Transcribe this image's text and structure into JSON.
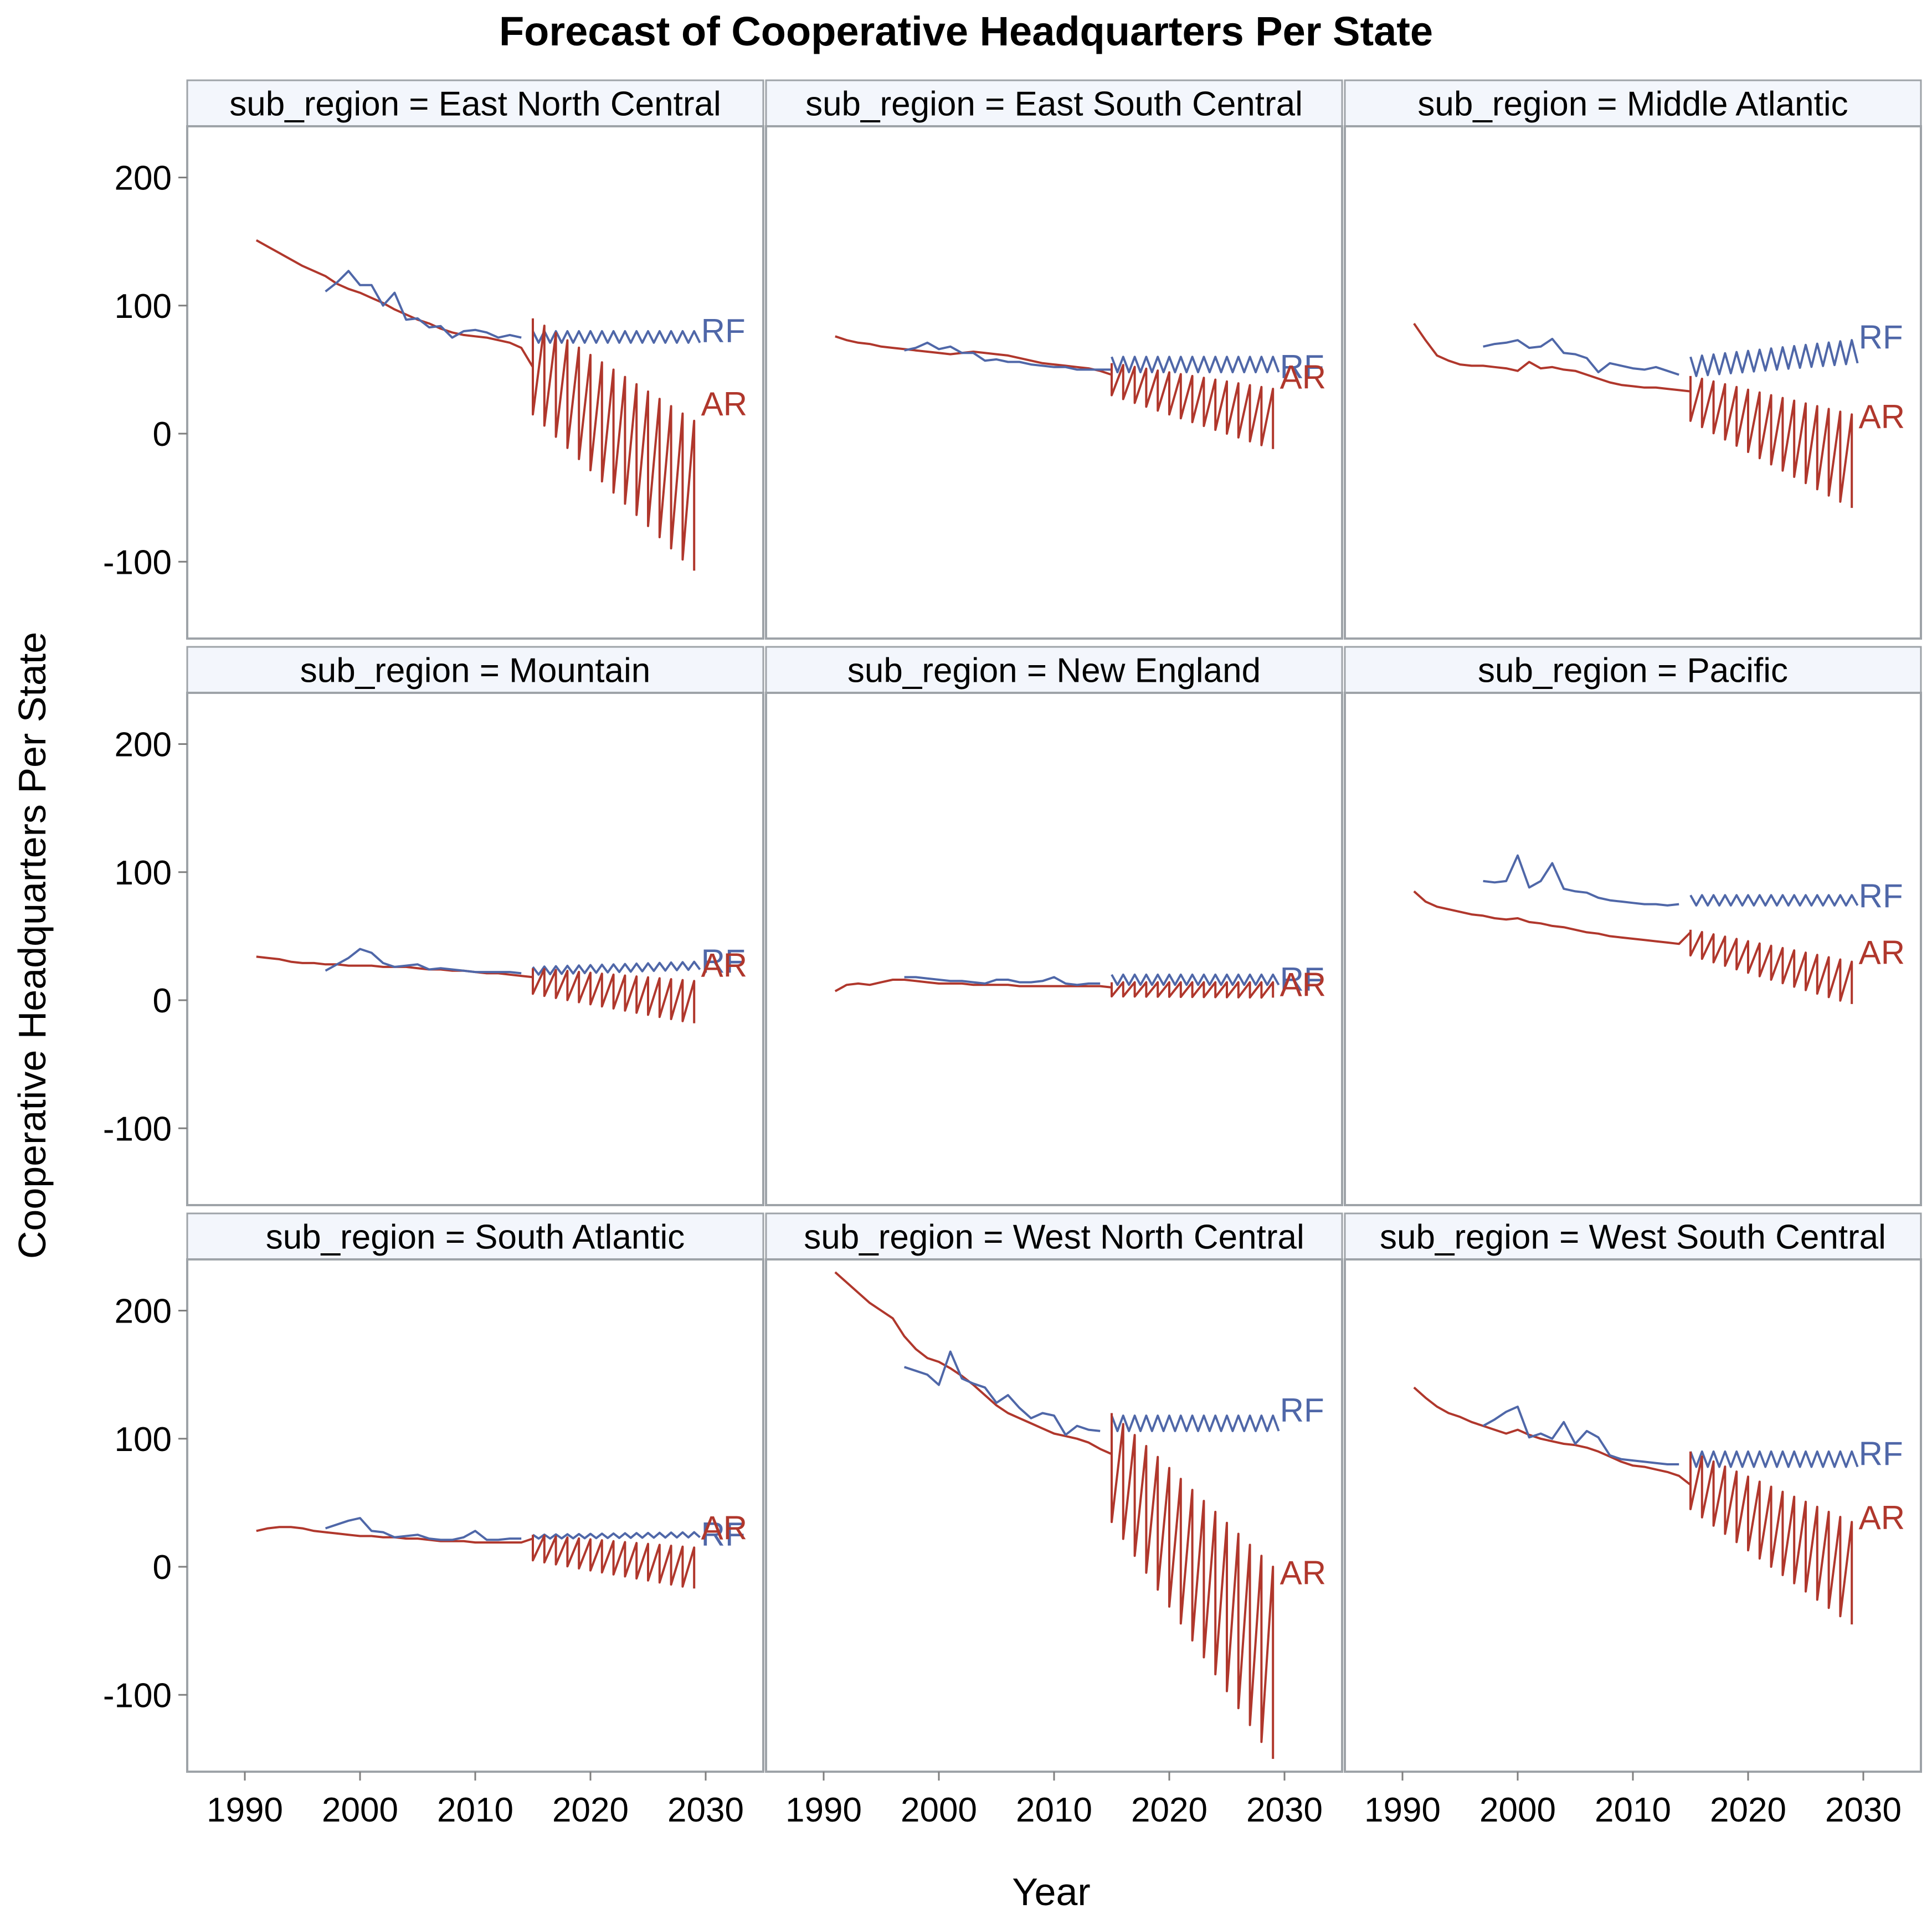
{
  "colors": {
    "rf": "#4F67A8",
    "ar": "#B0372C",
    "strip_bg": "#F3F6FC",
    "frame": "#9EA3A8",
    "axis": "#7F7F7F"
  },
  "chart_data": {
    "type": "line",
    "title": "Forecast of Cooperative Headquarters Per State",
    "xlabel": "Year",
    "ylabel": "Cooperative Headquarters Per State",
    "xlim": [
      1985,
      2035
    ],
    "ylim": [
      -160,
      240
    ],
    "xticks": [
      1990,
      2000,
      2010,
      2020,
      2030
    ],
    "xtick_labels": [
      "1990",
      "2000",
      "2010",
      "2020",
      "2030"
    ],
    "yticks": [
      200,
      100,
      0,
      -100
    ],
    "ytick_labels": [
      "200",
      "100",
      "0",
      "-100"
    ],
    "facet_variable": "sub_region",
    "panels": [
      {
        "label": "sub_region = East North Central",
        "rf": {
          "name": "RF",
          "start": 1997,
          "values": [
            111,
            118,
            127,
            116,
            116,
            100,
            110,
            89,
            90,
            83,
            84,
            75,
            80,
            81,
            79,
            75,
            77,
            75
          ],
          "forecast": {
            "start": 2015,
            "end": 2029,
            "high": 80,
            "low": 71
          }
        },
        "ar": {
          "name": "AR",
          "start": 1991,
          "values": [
            151,
            146,
            141,
            136,
            131,
            127,
            123,
            117,
            113,
            110,
            106,
            102,
            97,
            93,
            89,
            86,
            82,
            79,
            77,
            76,
            75,
            73,
            71,
            67,
            52
          ],
          "forecast": {
            "start": 2015,
            "end": 2029,
            "high_start": 90,
            "high_end": 10,
            "low_start": 15,
            "low_end": -107
          }
        }
      },
      {
        "label": "sub_region = East South Central",
        "rf": {
          "name": "RF",
          "start": 1997,
          "values": [
            65,
            67,
            71,
            66,
            68,
            63,
            63,
            57,
            58,
            56,
            56,
            54,
            53,
            52,
            52,
            50,
            50,
            50,
            50
          ],
          "forecast": {
            "start": 2015,
            "end": 2029,
            "high": 60,
            "low": 48
          }
        },
        "ar": {
          "name": "AR",
          "start": 1991,
          "values": [
            76,
            73,
            71,
            70,
            68,
            67,
            66,
            65,
            64,
            63,
            62,
            63,
            64,
            63,
            62,
            61,
            59,
            57,
            55,
            54,
            53,
            52,
            51,
            49,
            46
          ],
          "forecast": {
            "start": 2015,
            "end": 2029,
            "high_start": 55,
            "high_end": 35,
            "low_start": 30,
            "low_end": -12
          }
        }
      },
      {
        "label": "sub_region = Middle Atlantic",
        "rf": {
          "name": "RF",
          "start": 1997,
          "values": [
            68,
            70,
            71,
            73,
            67,
            68,
            74,
            63,
            62,
            59,
            48,
            55,
            53,
            51,
            50,
            52,
            49,
            46
          ],
          "forecast": {
            "start": 2015,
            "end": 2029,
            "high_start": 60,
            "high_end": 73,
            "low_start": 45,
            "low_end": 55
          }
        },
        "ar": {
          "name": "AR",
          "start": 1991,
          "values": [
            86,
            73,
            61,
            57,
            54,
            53,
            53,
            52,
            51,
            49,
            56,
            51,
            52,
            50,
            49,
            46,
            43,
            40,
            38,
            37,
            36,
            36,
            35,
            34,
            33
          ],
          "forecast": {
            "start": 2015,
            "end": 2029,
            "high_start": 45,
            "high_end": 15,
            "low_start": 10,
            "low_end": -58
          }
        }
      },
      {
        "label": "sub_region = Mountain",
        "rf": {
          "name": "RF",
          "start": 1997,
          "values": [
            23,
            28,
            33,
            40,
            37,
            29,
            26,
            27,
            28,
            24,
            25,
            24,
            23,
            22,
            22,
            22,
            22,
            21
          ],
          "forecast": {
            "start": 2015,
            "end": 2029,
            "high_start": 26,
            "high_end": 30,
            "low_start": 20,
            "low_end": 24
          }
        },
        "ar": {
          "name": "AR",
          "start": 1991,
          "values": [
            34,
            33,
            32,
            30,
            29,
            29,
            28,
            28,
            27,
            27,
            27,
            26,
            26,
            26,
            25,
            24,
            24,
            23,
            23,
            22,
            21,
            21,
            20,
            19,
            18
          ],
          "forecast": {
            "start": 2015,
            "end": 2029,
            "high_start": 25,
            "high_end": 15,
            "low_start": 5,
            "low_end": -18
          }
        }
      },
      {
        "label": "sub_region = New England",
        "rf": {
          "name": "RF",
          "start": 1997,
          "values": [
            18,
            18,
            17,
            16,
            15,
            15,
            14,
            13,
            16,
            16,
            14,
            14,
            15,
            18,
            13,
            12,
            13,
            13
          ],
          "forecast": {
            "start": 2015,
            "end": 2029,
            "high": 20,
            "low": 12
          }
        },
        "ar": {
          "name": "AR",
          "start": 1991,
          "values": [
            7,
            12,
            13,
            12,
            14,
            16,
            16,
            15,
            14,
            13,
            13,
            13,
            12,
            12,
            12,
            12,
            11,
            11,
            11,
            11,
            11,
            11,
            11,
            11,
            10
          ],
          "forecast": {
            "start": 2015,
            "end": 2029,
            "high_start": 14,
            "high_end": 14,
            "low_start": 3,
            "low_end": 2
          }
        }
      },
      {
        "label": "sub_region = Pacific",
        "rf": {
          "name": "RF",
          "start": 1997,
          "values": [
            93,
            92,
            93,
            113,
            88,
            93,
            107,
            87,
            85,
            84,
            80,
            78,
            77,
            76,
            75,
            75,
            74,
            75
          ],
          "forecast": {
            "start": 2015,
            "end": 2029,
            "high": 82,
            "low": 74
          }
        },
        "ar": {
          "name": "AR",
          "start": 1991,
          "values": [
            85,
            77,
            73,
            71,
            69,
            67,
            66,
            64,
            63,
            64,
            61,
            60,
            58,
            57,
            55,
            53,
            52,
            50,
            49,
            48,
            47,
            46,
            45,
            44,
            53
          ],
          "forecast": {
            "start": 2015,
            "end": 2029,
            "high_start": 55,
            "high_end": 30,
            "low_start": 35,
            "low_end": -3
          }
        }
      },
      {
        "label": "sub_region = South Atlantic",
        "rf": {
          "name": "RF",
          "start": 1997,
          "values": [
            30,
            33,
            36,
            38,
            28,
            27,
            23,
            24,
            25,
            22,
            21,
            21,
            23,
            28,
            21,
            21,
            22,
            22
          ],
          "forecast": {
            "start": 2015,
            "end": 2029,
            "high_start": 25,
            "high_end": 27,
            "low_start": 22,
            "low_end": 23
          }
        },
        "ar": {
          "name": "AR",
          "start": 1991,
          "values": [
            28,
            30,
            31,
            31,
            30,
            28,
            27,
            26,
            25,
            24,
            24,
            23,
            23,
            22,
            22,
            21,
            20,
            20,
            20,
            19,
            19,
            19,
            19,
            19,
            22
          ],
          "forecast": {
            "start": 2015,
            "end": 2029,
            "high_start": 25,
            "high_end": 15,
            "low_start": 5,
            "low_end": -17
          }
        }
      },
      {
        "label": "sub_region = West North Central",
        "rf": {
          "name": "RF",
          "start": 1997,
          "values": [
            156,
            153,
            150,
            142,
            168,
            147,
            143,
            140,
            128,
            134,
            124,
            116,
            120,
            118,
            103,
            110,
            107,
            106
          ],
          "forecast": {
            "start": 2015,
            "end": 2029,
            "high": 118,
            "low": 106
          }
        },
        "ar": {
          "name": "AR",
          "start": 1991,
          "values": [
            230,
            222,
            214,
            206,
            200,
            194,
            180,
            170,
            163,
            160,
            155,
            149,
            142,
            134,
            126,
            120,
            116,
            112,
            108,
            104,
            102,
            100,
            97,
            92,
            88
          ],
          "forecast": {
            "start": 2015,
            "end": 2029,
            "high_start": 120,
            "high_end": 0,
            "low_start": 35,
            "low_end": -150
          }
        }
      },
      {
        "label": "sub_region = West South Central",
        "rf": {
          "name": "RF",
          "start": 1997,
          "values": [
            110,
            115,
            121,
            125,
            101,
            104,
            100,
            113,
            96,
            106,
            101,
            87,
            84,
            83,
            82,
            81,
            80,
            80
          ],
          "forecast": {
            "start": 2015,
            "end": 2029,
            "high": 90,
            "low": 78
          }
        },
        "ar": {
          "name": "AR",
          "start": 1991,
          "values": [
            140,
            132,
            125,
            120,
            117,
            113,
            110,
            107,
            104,
            107,
            103,
            100,
            98,
            96,
            95,
            93,
            90,
            86,
            82,
            79,
            78,
            76,
            74,
            71,
            64
          ],
          "forecast": {
            "start": 2015,
            "end": 2029,
            "high_start": 90,
            "high_end": 35,
            "low_start": 45,
            "low_end": -45
          }
        }
      }
    ],
    "end_labels": [
      {
        "text": "RF",
        "series": "rf",
        "panel": 0,
        "value": 80
      },
      {
        "text": "AR",
        "series": "ar",
        "panel": 0,
        "value": 23
      },
      {
        "text": "RF",
        "series": "rf",
        "panel": 1,
        "value": 52
      },
      {
        "text": "AR",
        "series": "ar",
        "panel": 1,
        "value": 44
      },
      {
        "text": "RF",
        "series": "rf",
        "panel": 2,
        "value": 75
      },
      {
        "text": "AR",
        "series": "ar",
        "panel": 2,
        "value": 13
      },
      {
        "text": "RF",
        "series": "rf",
        "panel": 3,
        "value": 30
      },
      {
        "text": "AR",
        "series": "ar",
        "panel": 3,
        "value": 27
      },
      {
        "text": "RF",
        "series": "rf",
        "panel": 4,
        "value": 16
      },
      {
        "text": "AR",
        "series": "ar",
        "panel": 4,
        "value": 12
      },
      {
        "text": "RF",
        "series": "rf",
        "panel": 5,
        "value": 81
      },
      {
        "text": "AR",
        "series": "ar",
        "panel": 5,
        "value": 37
      },
      {
        "text": "RF",
        "series": "rf",
        "panel": 6,
        "value": 25
      },
      {
        "text": "AR",
        "series": "ar",
        "panel": 6,
        "value": 30
      },
      {
        "text": "RF",
        "series": "rf",
        "panel": 7,
        "value": 122
      },
      {
        "text": "AR",
        "series": "ar",
        "panel": 7,
        "value": -5
      },
      {
        "text": "RF",
        "series": "rf",
        "panel": 8,
        "value": 88
      },
      {
        "text": "AR",
        "series": "ar",
        "panel": 8,
        "value": 38
      }
    ]
  }
}
